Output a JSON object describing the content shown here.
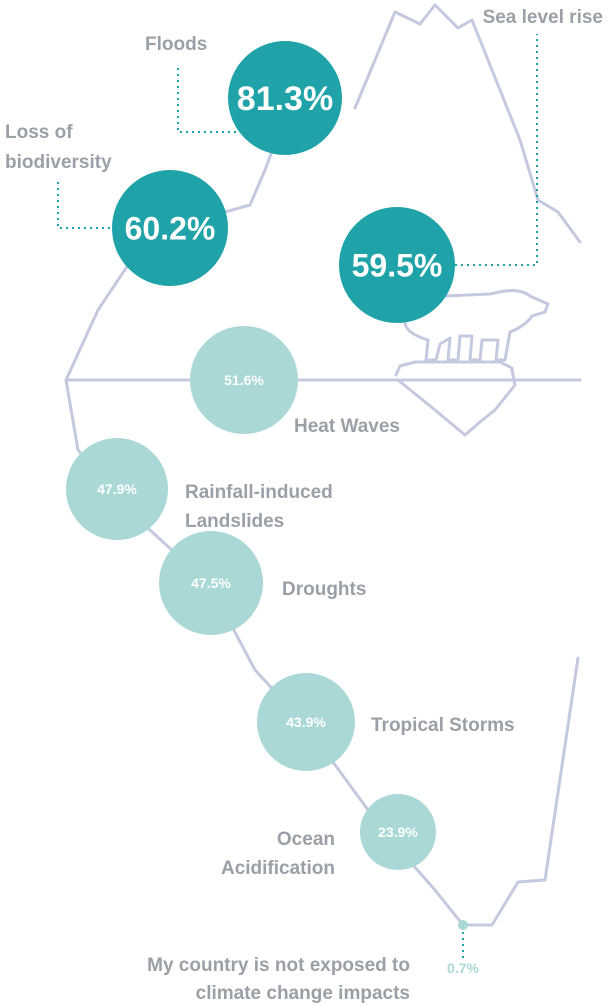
{
  "colors": {
    "dark": "#1fa3a8",
    "light": "#a9d8d6",
    "line": "#c4c9e0",
    "label": "#9aa0a6",
    "dot_line": "#1fa3a8"
  },
  "chart_data": {
    "type": "bubble",
    "unit": "%",
    "items": [
      {
        "label_lines": [
          "Floods"
        ],
        "value": 81.3,
        "value_label": "81.3%",
        "tone": "dark"
      },
      {
        "label_lines": [
          "Loss of",
          "biodiversity"
        ],
        "value": 60.2,
        "value_label": "60.2%",
        "tone": "dark"
      },
      {
        "label_lines": [
          "Sea level rise"
        ],
        "value": 59.5,
        "value_label": "59.5%",
        "tone": "dark"
      },
      {
        "label_lines": [
          "Heat Waves"
        ],
        "value": 51.6,
        "value_label": "51.6%",
        "tone": "light"
      },
      {
        "label_lines": [
          "Rainfall-induced",
          "Landslides"
        ],
        "value": 47.9,
        "value_label": "47.9%",
        "tone": "light"
      },
      {
        "label_lines": [
          "Droughts"
        ],
        "value": 47.5,
        "value_label": "47.5%",
        "tone": "light"
      },
      {
        "label_lines": [
          "Tropical Storms"
        ],
        "value": 43.9,
        "value_label": "43.9%",
        "tone": "light"
      },
      {
        "label_lines": [
          "Ocean",
          "Acidification"
        ],
        "value": 23.9,
        "value_label": "23.9%",
        "tone": "light"
      },
      {
        "label_lines": [
          "My country is not exposed to",
          "climate change impacts"
        ],
        "value": 0.7,
        "value_label": "0.7%",
        "tone": "light"
      }
    ]
  }
}
